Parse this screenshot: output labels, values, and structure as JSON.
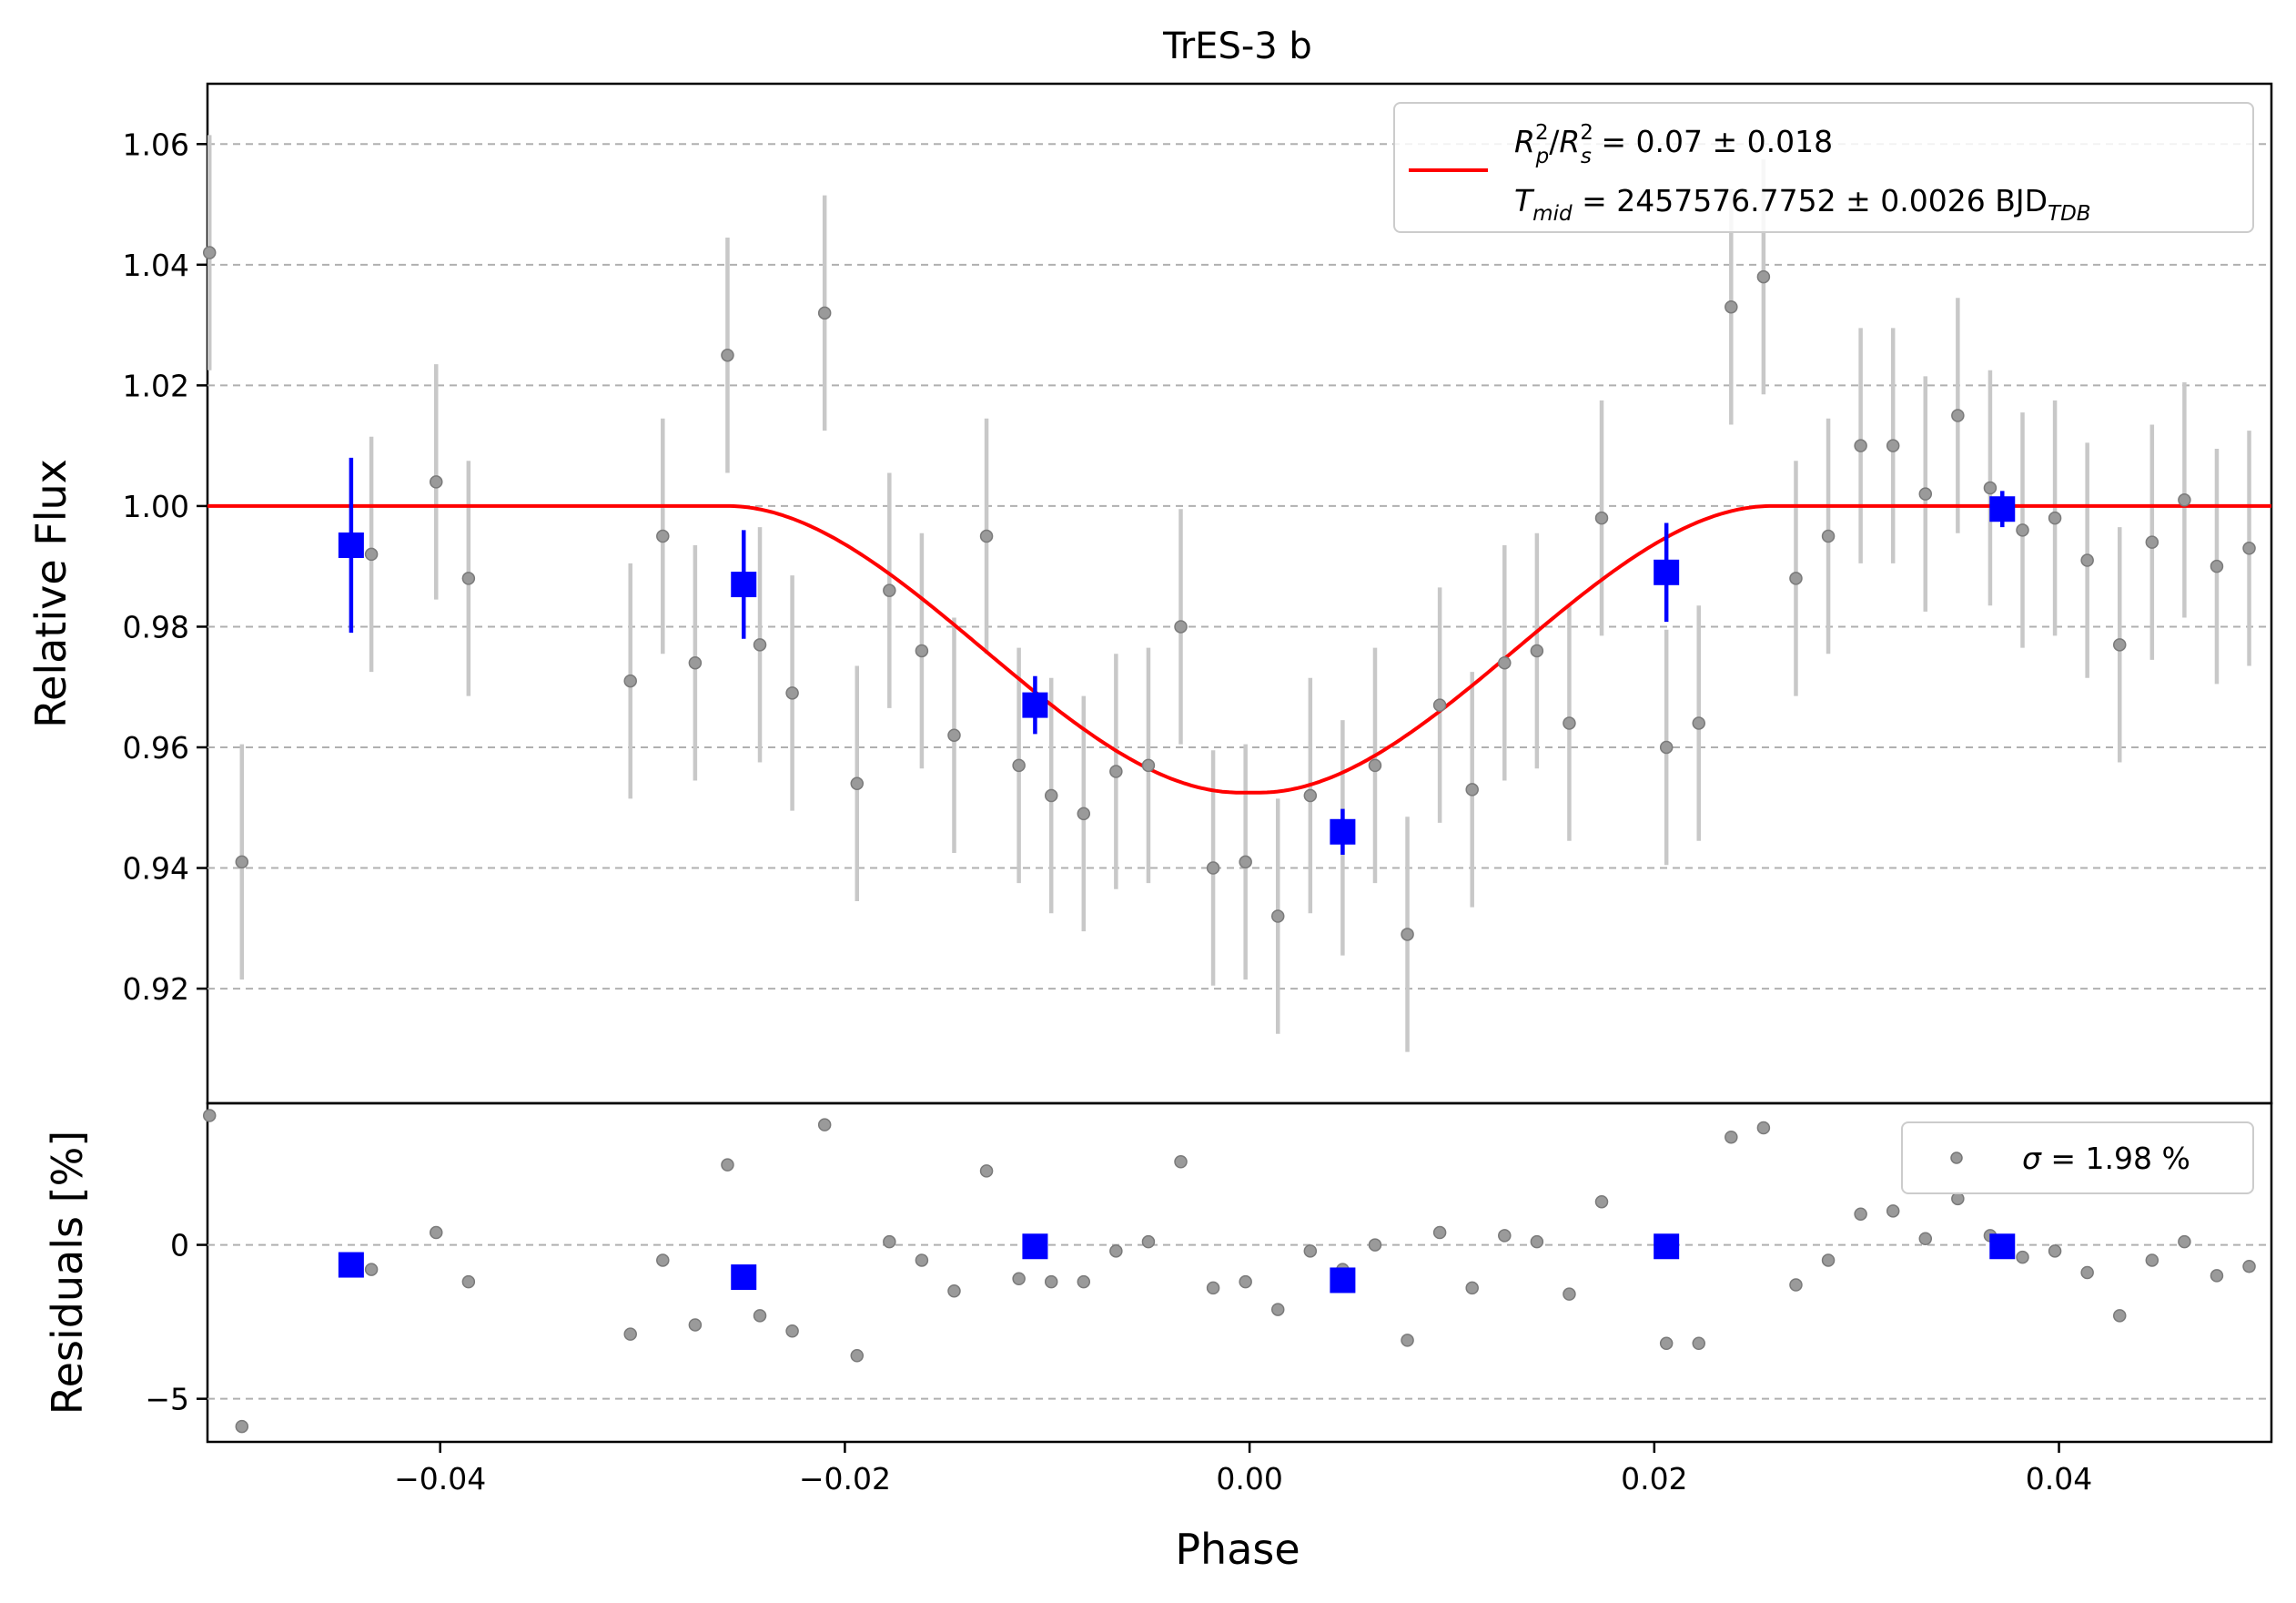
{
  "chart_data": [
    {
      "type": "scatter",
      "panel": "light-curve",
      "title": "TrES-3 b",
      "xlabel": "",
      "ylabel": "Relative Flux",
      "xlim": [
        -0.0515,
        0.0505
      ],
      "ylim": [
        0.901,
        1.07
      ],
      "yticks": [
        0.92,
        0.94,
        0.96,
        0.98,
        1.0,
        1.02,
        1.04,
        1.06
      ],
      "ytick_labels": [
        "0.92",
        "0.94",
        "0.96",
        "0.98",
        "1.00",
        "1.02",
        "1.04",
        "1.06"
      ],
      "grid": "y-dashed",
      "legend_position": "top-right",
      "legend": {
        "line1": {
          "symbol": "R",
          "sup1": "2",
          "sub1": "p",
          "slash": "/",
          "symbol2": "R",
          "sup2": "2",
          "sub2": "s",
          "rest": " = 0.07 ± 0.018"
        },
        "line2": {
          "symbol": "T",
          "sub": "mid",
          "rest": " = 2457576.7752 ± 0.0026 BJD",
          "unit_sub": "TDB"
        }
      },
      "colors": {
        "raw": "#808080",
        "errorbar": "#c8c8c8",
        "binned": "#0000ff",
        "model": "#ff0000",
        "grid": "#b0b0b0"
      },
      "series": [
        {
          "kind": "raw",
          "x": [
            -0.0514,
            -0.0498,
            -0.0434,
            -0.0402,
            -0.0386,
            -0.0306,
            -0.029,
            -0.0274,
            -0.0258,
            -0.0242,
            -0.0226,
            -0.021,
            -0.0194,
            -0.0178,
            -0.0162,
            -0.0146,
            -0.013,
            -0.0114,
            -0.0098,
            -0.0082,
            -0.0066,
            -0.005,
            -0.0034,
            -0.0018,
            -0.0002,
            0.0014,
            0.003,
            0.0046,
            0.0062,
            0.0078,
            0.0094,
            0.011,
            0.0126,
            0.0142,
            0.0158,
            0.0174,
            0.0206,
            0.0222,
            0.0238,
            0.0254,
            0.027,
            0.0286,
            0.0302,
            0.0318,
            0.0334,
            0.035,
            0.0366,
            0.0382,
            0.0398,
            0.0414,
            0.043,
            0.0446,
            0.0462,
            0.0478,
            0.0494,
            0.0508
          ],
          "y": [
            1.042,
            0.941,
            0.992,
            1.004,
            0.988,
            0.971,
            0.995,
            0.974,
            1.025,
            0.977,
            0.969,
            1.032,
            0.954,
            0.986,
            0.976,
            0.962,
            0.995,
            0.957,
            0.952,
            0.949,
            0.956,
            0.957,
            0.98,
            0.94,
            0.941,
            0.932,
            0.952,
            0.945,
            0.957,
            0.929,
            0.967,
            0.953,
            0.974,
            0.976,
            0.964,
            0.998,
            0.96,
            0.964,
            1.033,
            1.038,
            0.988,
            0.995,
            1.01,
            1.01,
            1.002,
            1.015,
            1.003,
            0.996,
            0.998,
            0.991,
            0.977,
            0.994,
            1.001,
            0.99,
            0.993,
            0.995
          ],
          "yerr": 0.0195
        },
        {
          "kind": "binned",
          "x": [
            -0.0444,
            -0.025,
            -0.0106,
            0.0046,
            0.0206,
            0.0372
          ],
          "y": [
            0.9935,
            0.987,
            0.967,
            0.946,
            0.989,
            0.9995
          ],
          "yerr": [
            0.0145,
            0.009,
            0.0048,
            0.0038,
            0.0082,
            0.003
          ]
        },
        {
          "kind": "model",
          "name": "transit model",
          "rp2_rs2": 0.07,
          "t_mid": 2457576.7752,
          "depth_min": 0.9525,
          "t1": -0.0258,
          "t2": -0.0005,
          "t3": 0.0005,
          "t4": 0.0258
        }
      ]
    },
    {
      "type": "scatter",
      "panel": "residuals",
      "xlabel": "Phase",
      "ylabel": "Residuals [%]",
      "xlim": [
        -0.0515,
        0.0505
      ],
      "ylim": [
        -6.4,
        4.6
      ],
      "yticks": [
        -5,
        0
      ],
      "ytick_labels": [
        "−5",
        "0"
      ],
      "xticks": [
        -0.04,
        -0.02,
        0.0,
        0.02,
        0.04
      ],
      "xtick_labels": [
        "−0.04",
        "−0.02",
        "0.00",
        "0.02",
        "0.04"
      ],
      "grid": "y-dashed",
      "legend_position": "top-right",
      "legend": {
        "symbol": "σ",
        "rest": " = 1.98 %"
      },
      "series": [
        {
          "kind": "raw",
          "x": [
            -0.0514,
            -0.0498,
            -0.0434,
            -0.0402,
            -0.0386,
            -0.0306,
            -0.029,
            -0.0274,
            -0.0258,
            -0.0242,
            -0.0226,
            -0.021,
            -0.0194,
            -0.0178,
            -0.0162,
            -0.0146,
            -0.013,
            -0.0114,
            -0.0098,
            -0.0082,
            -0.0066,
            -0.005,
            -0.0034,
            -0.0018,
            -0.0002,
            0.0014,
            0.003,
            0.0046,
            0.0062,
            0.0078,
            0.0094,
            0.011,
            0.0126,
            0.0142,
            0.0158,
            0.0174,
            0.0206,
            0.0222,
            0.0238,
            0.0254,
            0.027,
            0.0286,
            0.0302,
            0.0318,
            0.0334,
            0.035,
            0.0366,
            0.0382,
            0.0398,
            0.0414,
            0.043,
            0.0446,
            0.0462,
            0.0478,
            0.0494,
            0.0508
          ],
          "y": [
            4.2,
            -5.9,
            -0.8,
            0.4,
            -1.2,
            -2.9,
            -0.5,
            -2.6,
            2.6,
            -2.3,
            -2.8,
            3.9,
            -3.6,
            0.1,
            -0.5,
            -1.5,
            2.4,
            -1.1,
            -1.2,
            -1.2,
            -0.2,
            0.1,
            2.7,
            -1.4,
            -1.2,
            -2.1,
            -0.2,
            -0.8,
            0.0,
            -3.1,
            0.4,
            -1.4,
            0.3,
            0.1,
            -1.6,
            1.4,
            -3.2,
            -3.2,
            3.5,
            3.8,
            -1.3,
            -0.5,
            1.0,
            1.1,
            0.2,
            1.5,
            0.3,
            -0.4,
            -0.2,
            -0.9,
            -2.3,
            -0.5,
            0.1,
            -1.0,
            -0.7,
            -0.5
          ]
        },
        {
          "kind": "binned",
          "x": [
            -0.0444,
            -0.025,
            -0.0106,
            0.0046,
            0.0206,
            0.0372
          ],
          "y": [
            -0.65,
            -1.05,
            -0.05,
            -1.15,
            -0.05,
            -0.05
          ]
        }
      ]
    }
  ]
}
